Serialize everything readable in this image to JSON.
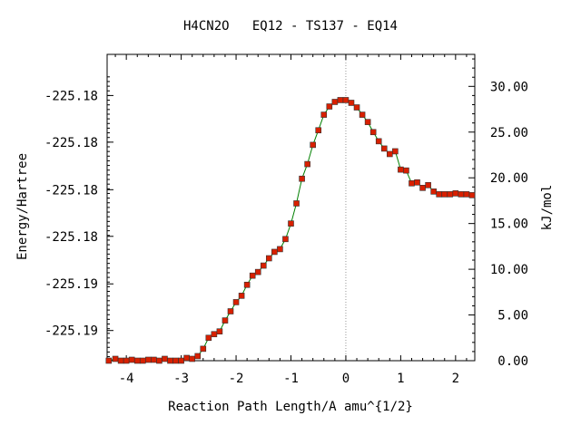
{
  "chart_data": {
    "type": "line",
    "title": "H4CN2O   EQ12 - TS137 - EQ14",
    "xlabel": "Reaction Path Length/A amu^{1/2}",
    "ylabel_left": "Energy/Hartree",
    "ylabel_right": "kJ/mol",
    "xlim": [
      -4.35,
      2.35
    ],
    "ylim_kj": [
      0,
      33.5
    ],
    "x_ticks": [
      -4,
      -3,
      -2,
      -1,
      0,
      1,
      2
    ],
    "x_tick_labels": [
      "-4",
      "-3",
      "-2",
      "-1",
      "0",
      "1",
      "2"
    ],
    "left_ticks_kj": [
      29.0,
      23.9,
      18.7,
      13.6,
      8.4,
      3.3
    ],
    "left_tick_labels": [
      "-225.18",
      "-225.18",
      "-225.18",
      "-225.18",
      "-225.19",
      "-225.19"
    ],
    "right_ticks_kj": [
      0,
      5,
      10,
      15,
      20,
      25,
      30
    ],
    "right_tick_labels": [
      "0.00",
      "5.00",
      "10.00",
      "15.00",
      "20.00",
      "25.00",
      "30.00"
    ],
    "ts_marker_x": 0,
    "grid": false,
    "colors": {
      "line": "#008000",
      "marker": "#d82000",
      "marker_edge": "#333333",
      "ts_line": "#999999"
    },
    "series": [
      {
        "x": [
          -4.32,
          -4.2,
          -4.1,
          -4.0,
          -3.9,
          -3.8,
          -3.7,
          -3.6,
          -3.5,
          -3.4,
          -3.3,
          -3.2,
          -3.1,
          -3.0,
          -2.9,
          -2.8,
          -2.7,
          -2.6,
          -2.5,
          -2.4,
          -2.3,
          -2.2,
          -2.1,
          -2.0,
          -1.9,
          -1.8,
          -1.7,
          -1.6,
          -1.5,
          -1.4,
          -1.3,
          -1.2,
          -1.1,
          -1.0,
          -0.9,
          -0.8,
          -0.7,
          -0.6,
          -0.5,
          -0.4,
          -0.3,
          -0.2,
          -0.1,
          0.0,
          0.1,
          0.2,
          0.3,
          0.4,
          0.5,
          0.6,
          0.7,
          0.8,
          0.9,
          1.0,
          1.1,
          1.2,
          1.3,
          1.4,
          1.5,
          1.6,
          1.7,
          1.8,
          1.9,
          2.0,
          2.1,
          2.2,
          2.3
        ],
        "y": [
          0.0,
          0.2,
          0.0,
          0.0,
          0.1,
          0.0,
          0.0,
          0.1,
          0.1,
          0.0,
          0.2,
          0.0,
          0.0,
          0.0,
          0.3,
          0.2,
          0.5,
          1.3,
          2.5,
          2.9,
          3.2,
          4.4,
          5.4,
          6.4,
          7.1,
          8.3,
          9.3,
          9.7,
          10.4,
          11.2,
          11.9,
          12.2,
          13.3,
          15.0,
          17.2,
          19.9,
          21.5,
          23.6,
          25.2,
          26.9,
          27.8,
          28.3,
          28.5,
          28.5,
          28.2,
          27.7,
          26.9,
          26.1,
          25.0,
          24.0,
          23.2,
          22.6,
          22.9,
          20.9,
          20.8,
          19.4,
          19.5,
          18.9,
          19.2,
          18.5,
          18.2,
          18.2,
          18.2,
          18.3,
          18.2,
          18.2,
          18.1
        ]
      }
    ]
  }
}
